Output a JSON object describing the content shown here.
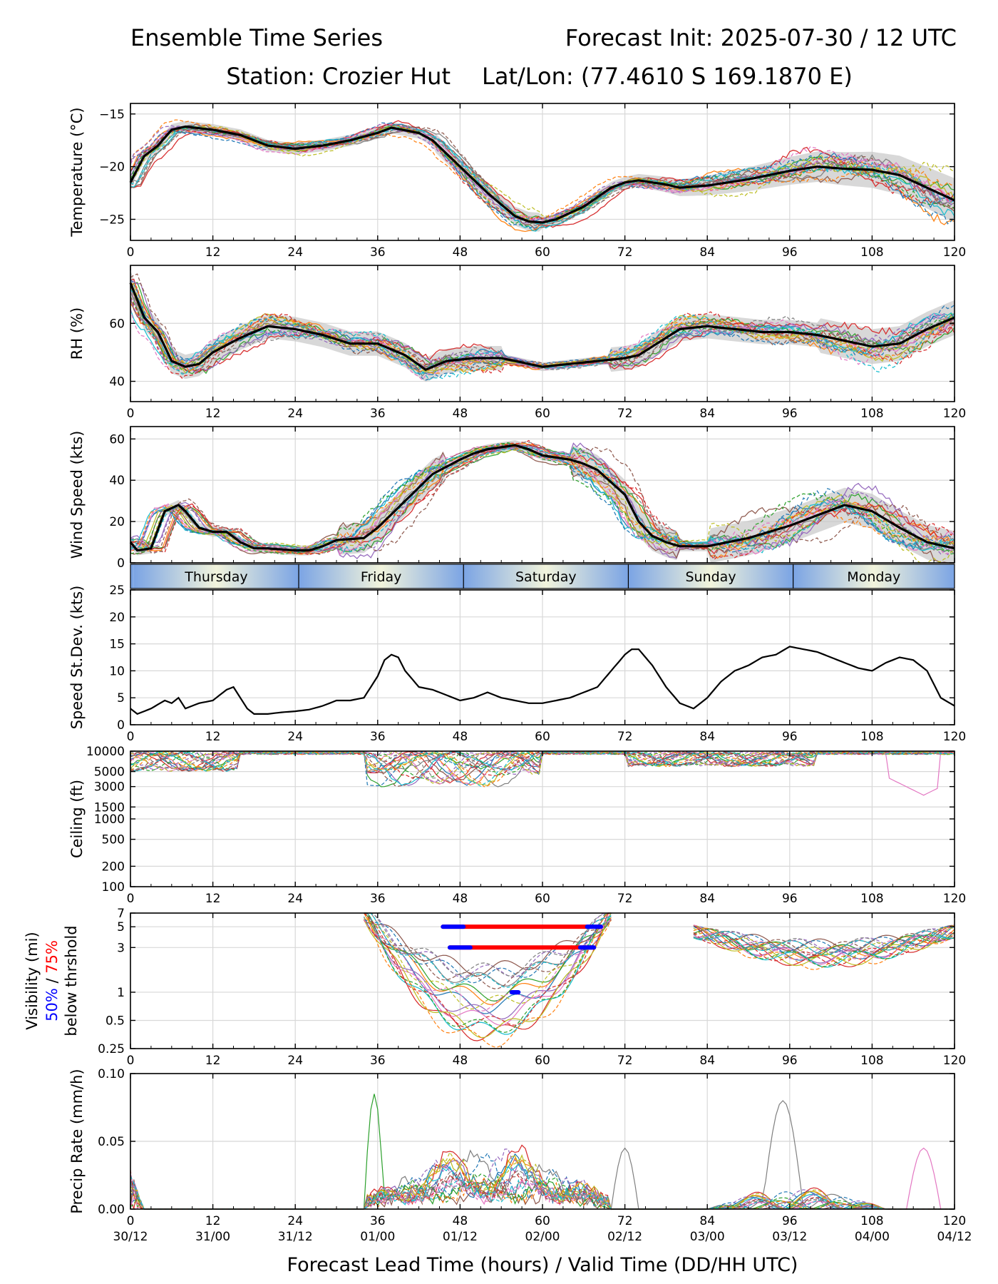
{
  "header": {
    "title_left": "Ensemble Time Series",
    "title_right": "Forecast Init: 2025-07-30 / 12 UTC",
    "station": "Station: Crozier Hut",
    "latlon": "Lat/Lon: (77.4610 S 169.1870 E)"
  },
  "xaxis": {
    "label": "Forecast Lead Time (hours) / Valid Time (DD/HH UTC)",
    "ticks": [
      0,
      12,
      24,
      36,
      48,
      60,
      72,
      84,
      96,
      108,
      120
    ],
    "tick_labels": [
      "0",
      "12",
      "24",
      "36",
      "48",
      "60",
      "72",
      "84",
      "96",
      "108",
      "120"
    ],
    "valid_labels": [
      "30/12",
      "31/00",
      "31/12",
      "01/00",
      "01/12",
      "02/00",
      "02/12",
      "03/00",
      "03/12",
      "04/00",
      "04/12"
    ],
    "range": [
      0,
      120
    ]
  },
  "days": {
    "labels": [
      "Thursday",
      "Friday",
      "Saturday",
      "Sunday",
      "Monday"
    ],
    "boundaries": [
      0.5,
      24.5,
      48.5,
      72.5,
      96.5,
      120
    ]
  },
  "colors": {
    "mean": "#000000",
    "spread": "#c8c8c8",
    "members": [
      "#1f77b4",
      "#ff7f0e",
      "#2ca02c",
      "#d62728",
      "#9467bd",
      "#8c564b",
      "#e377c2",
      "#7f7f7f",
      "#bcbd22",
      "#17becf"
    ],
    "vis50": "#0000ff",
    "vis75": "#ff0000",
    "day_edge": "#7ba4e4",
    "day_mid": "#f2f4dc"
  },
  "chart_data": [
    {
      "id": "temperature",
      "type": "line",
      "ylabel": "Temperature (°C)",
      "ylim": [
        -27,
        -14
      ],
      "yticks": [
        -25,
        -20,
        -15
      ],
      "ytick_labels": [
        "−25",
        "−20",
        "−15"
      ],
      "grid": true,
      "x": [
        0,
        2,
        4,
        6,
        8,
        12,
        16,
        20,
        24,
        28,
        32,
        36,
        38,
        42,
        44,
        48,
        52,
        56,
        58,
        60,
        62,
        66,
        70,
        72,
        74,
        78,
        80,
        84,
        90,
        96,
        100,
        104,
        108,
        112,
        116,
        120
      ],
      "series": [
        {
          "values": [
            -21.5,
            -19.0,
            -18.0,
            -16.5,
            -16.2,
            -16.5,
            -17.0,
            -18.0,
            -18.3,
            -18.0,
            -17.5,
            -16.8,
            -16.3,
            -16.8,
            -17.5,
            -20.0,
            -22.5,
            -24.7,
            -25.2,
            -25.3,
            -25.0,
            -23.8,
            -22.0,
            -21.5,
            -21.3,
            -21.7,
            -22.0,
            -21.8,
            -21.2,
            -20.4,
            -20.0,
            -20.2,
            -20.3,
            -20.8,
            -22.0,
            -23.2
          ]
        }
      ]
    },
    {
      "id": "rh",
      "type": "line",
      "ylabel": "RH (%)",
      "ylim": [
        33,
        80
      ],
      "yticks": [
        40,
        60
      ],
      "ytick_labels": [
        "40",
        "60"
      ],
      "grid": true,
      "x": [
        0,
        2,
        4,
        6,
        8,
        10,
        12,
        16,
        20,
        24,
        28,
        32,
        36,
        40,
        43,
        46,
        50,
        54,
        58,
        60,
        64,
        68,
        72,
        74,
        76,
        80,
        84,
        88,
        92,
        96,
        100,
        104,
        108,
        112,
        116,
        120
      ],
      "series": [
        {
          "values": [
            74,
            62,
            57,
            47,
            45,
            46,
            50,
            55,
            59,
            58,
            56,
            53,
            53,
            49,
            44,
            47,
            48,
            48,
            46,
            45,
            46,
            47,
            48,
            49,
            52,
            58,
            59,
            58,
            57,
            57,
            56,
            54,
            52,
            53,
            58,
            62
          ]
        }
      ]
    },
    {
      "id": "wind",
      "type": "line",
      "ylabel": "Wind Speed (kts)",
      "ylim": [
        0,
        66
      ],
      "yticks": [
        0,
        20,
        40,
        60
      ],
      "ytick_labels": [
        "0",
        "20",
        "40",
        "60"
      ],
      "grid": true,
      "x": [
        0,
        1,
        3,
        5,
        7,
        8,
        10,
        12,
        14,
        16,
        18,
        20,
        24,
        26,
        28,
        30,
        34,
        36,
        40,
        44,
        48,
        50,
        52,
        54,
        56,
        58,
        60,
        64,
        66,
        68,
        72,
        74,
        76,
        78,
        80,
        84,
        90,
        96,
        100,
        104,
        108,
        112,
        116,
        120
      ],
      "series": [
        {
          "values": [
            10,
            6,
            7,
            25,
            28,
            25,
            17,
            15,
            15,
            10,
            7,
            7,
            6,
            6,
            8,
            11,
            12,
            17,
            30,
            43,
            50,
            53,
            55,
            56,
            57,
            55,
            52,
            50,
            48,
            45,
            33,
            20,
            13,
            10,
            8,
            8,
            12,
            18,
            23,
            28,
            25,
            17,
            10,
            7
          ]
        }
      ]
    },
    {
      "id": "speed_stdev",
      "type": "line",
      "ylabel": "Speed St.Dev. (kts)",
      "ylim": [
        0,
        25
      ],
      "yticks": [
        0,
        5,
        10,
        15,
        20,
        25
      ],
      "ytick_labels": [
        "0",
        "5",
        "10",
        "15",
        "20",
        "25"
      ],
      "grid": true,
      "x": [
        0,
        1,
        3,
        5,
        6,
        7,
        8,
        10,
        12,
        14,
        15,
        16,
        17,
        18,
        20,
        22,
        24,
        26,
        28,
        30,
        32,
        34,
        36,
        37,
        38,
        39,
        40,
        42,
        44,
        46,
        48,
        50,
        52,
        54,
        56,
        58,
        60,
        62,
        64,
        66,
        68,
        70,
        72,
        73,
        74,
        76,
        78,
        80,
        82,
        84,
        86,
        88,
        90,
        92,
        94,
        96,
        98,
        100,
        102,
        104,
        106,
        108,
        110,
        112,
        114,
        116,
        118,
        120
      ],
      "series": [
        {
          "values": [
            3,
            2,
            3,
            4.5,
            4,
            5,
            3,
            4,
            4.5,
            6.5,
            7,
            5,
            3,
            2,
            2,
            2.3,
            2.5,
            2.8,
            3.5,
            4.5,
            4.5,
            5,
            9,
            12,
            13,
            12.5,
            10,
            7,
            6.5,
            5.5,
            4.5,
            5,
            6,
            5,
            4.5,
            4,
            4,
            4.5,
            5,
            6,
            7,
            10,
            13,
            14,
            14,
            11,
            7,
            4,
            3,
            5,
            8,
            10,
            11,
            12.5,
            13,
            14.5,
            14,
            13.5,
            12.5,
            11.5,
            10.5,
            10,
            11.5,
            12.5,
            12,
            10,
            5,
            3.5
          ]
        }
      ]
    },
    {
      "id": "ceiling",
      "type": "line",
      "ylabel": "Ceiling (ft)",
      "scale": "log",
      "ylim": [
        100,
        10000
      ],
      "yticks": [
        100,
        200,
        500,
        1000,
        1500,
        3000,
        5000,
        10000
      ],
      "ytick_labels": [
        "100",
        "200",
        "500",
        "1000",
        "1500",
        "3000",
        "5000",
        "10000"
      ],
      "grid": true
    },
    {
      "id": "visibility",
      "type": "line",
      "ylabel_lines": [
        "Visibility (mi)",
        "below thrshold"
      ],
      "ylabel_pct50": "50%",
      "ylabel_sep": " / ",
      "ylabel_pct75": "75%",
      "scale": "log",
      "ylim": [
        0.25,
        7
      ],
      "yticks": [
        0.25,
        0.5,
        1,
        3,
        5,
        7
      ],
      "ytick_labels": [
        "0.25",
        "0.5",
        "1",
        "3",
        "5",
        "7"
      ],
      "grid": true,
      "threshold_bars": [
        {
          "level": 5,
          "pct": 75,
          "x": [
            45.5,
            68.5
          ]
        },
        {
          "level": 5,
          "pct": 50,
          "x": [
            45.5,
            48.5
          ]
        },
        {
          "level": 5,
          "pct": 50,
          "x": [
            66.5,
            68.5
          ]
        },
        {
          "level": 3,
          "pct": 75,
          "x": [
            46.5,
            67.5
          ]
        },
        {
          "level": 3,
          "pct": 50,
          "x": [
            46.5,
            49.5
          ]
        },
        {
          "level": 3,
          "pct": 50,
          "x": [
            65.5,
            67.5
          ]
        },
        {
          "level": 1,
          "pct": 50,
          "x": [
            55.5,
            56.5
          ]
        }
      ]
    },
    {
      "id": "precip",
      "type": "line",
      "ylabel": "Precip Rate (mm/h)",
      "ylim": [
        0,
        0.1
      ],
      "yticks": [
        0,
        0.05,
        0.1
      ],
      "ytick_labels": [
        "0.00",
        "0.05",
        "0.10"
      ],
      "grid": true
    }
  ]
}
